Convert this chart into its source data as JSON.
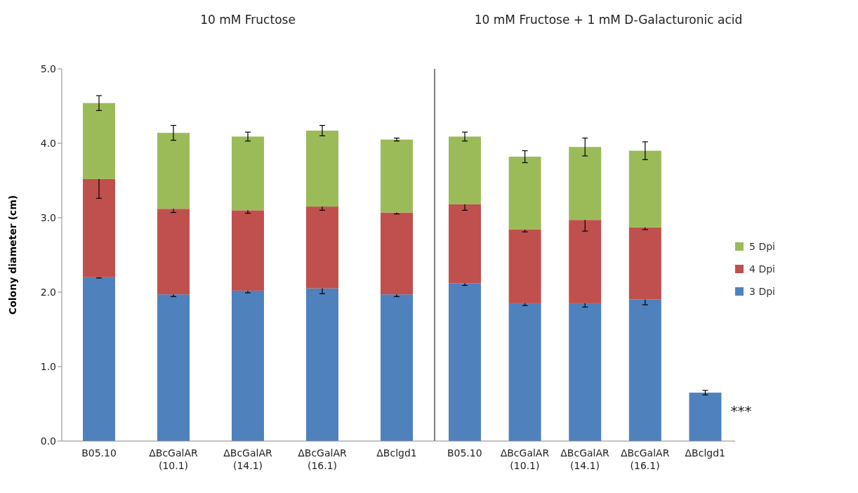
{
  "chart_data": [
    {
      "type": "bar",
      "title": "10 mM Fructose",
      "ylabel": "Colony diameter (cm)",
      "stacked": true,
      "legend": false,
      "categories": [
        "B05.10",
        "ΔBcGalAR (10.1)",
        "ΔBcGalAR (14.1)",
        "ΔBcGalAR (16.1)",
        "ΔBclgd1"
      ],
      "ylim": [
        0,
        5
      ],
      "yticks": [
        {
          "value": 0,
          "label": "0.0"
        },
        {
          "value": 1,
          "label": "1.0"
        },
        {
          "value": 2,
          "label": "2.0"
        },
        {
          "value": 3,
          "label": "3.0"
        },
        {
          "value": 4,
          "label": "4.0"
        },
        {
          "value": 5,
          "label": "5.0"
        }
      ],
      "series": [
        {
          "color": "#4f81bd",
          "values": [
            2.2,
            1.97,
            2.02,
            2.05,
            1.97
          ],
          "errors": [
            0.01,
            0.03,
            0.03,
            0.07,
            0.03
          ]
        },
        {
          "color": "#c0504d",
          "values": [
            1.32,
            1.15,
            1.08,
            1.1,
            1.1
          ],
          "errors": [
            0.26,
            0.05,
            0.04,
            0.05,
            0.02
          ]
        },
        {
          "color": "#9bbb59",
          "values": [
            1.02,
            1.02,
            0.99,
            1.02,
            0.98
          ],
          "errors": [
            0.1,
            0.1,
            0.06,
            0.07,
            0.02
          ]
        }
      ]
    },
    {
      "type": "bar",
      "title": "10 mM Fructose + 1 mM D-Galacturonic acid",
      "stacked": true,
      "legend": "right",
      "tick_labels": "x",
      "categories": [
        "B05.10",
        "ΔBcGalAR (10.1)",
        "ΔBcGalAR (14.1)",
        "ΔBcGalAR (16.1)",
        "ΔBclgd1"
      ],
      "ylim": [
        0,
        5
      ],
      "annotations": [
        "***"
      ],
      "series": [
        {
          "name": "3 Dpi",
          "color": "#4f81bd",
          "values": [
            2.12,
            1.85,
            1.85,
            1.9,
            0.65
          ],
          "errors": [
            0.03,
            0.03,
            0.05,
            0.07,
            0.03
          ]
        },
        {
          "name": "4 Dpi",
          "color": "#c0504d",
          "values": [
            1.06,
            0.99,
            1.12,
            0.97,
            null
          ],
          "errors": [
            0.08,
            0.03,
            0.15,
            0.03,
            null
          ]
        },
        {
          "name": "5 Dpi",
          "color": "#9bbb59",
          "values": [
            0.91,
            0.98,
            0.98,
            1.03,
            null
          ],
          "errors": [
            0.06,
            0.08,
            0.12,
            0.12,
            null
          ]
        }
      ]
    }
  ]
}
